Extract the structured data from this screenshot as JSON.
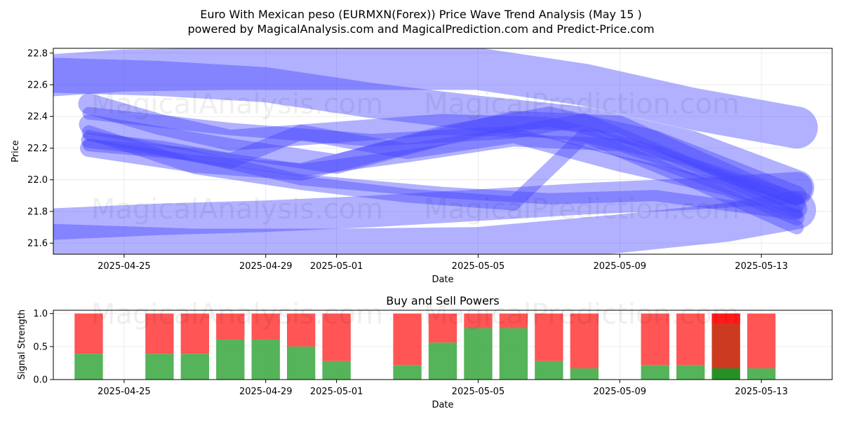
{
  "title_line1": "Euro With Mexican peso (EURMXN(Forex)) Price Wave Trend Analysis (May 15 )",
  "title_line2": "powered by MagicalAnalysis.com and MagicalPrediction.com and Predict-Price.com",
  "watermarks": [
    "MagicalAnalysis.com",
    "MagicalPrediction.com"
  ],
  "colors": {
    "wave": "#4444ff",
    "buy": "#4caf50",
    "sell": "#ff4c4c",
    "sell_dark": "#cc3a1f",
    "buy_dark": "#1a8a1a",
    "sell_bright": "#ff1a1a"
  },
  "chart_data": [
    {
      "type": "line",
      "title": "",
      "xlabel": "Date",
      "ylabel": "Price",
      "ylim": [
        21.53,
        22.83
      ],
      "xlim": [
        "2025-04-23",
        "2025-05-15"
      ],
      "x_ticks": [
        "2025-04-25",
        "2025-04-29",
        "2025-05-01",
        "2025-05-05",
        "2025-05-09",
        "2025-05-13"
      ],
      "y_ticks": [
        21.6,
        21.8,
        22.0,
        22.2,
        22.4,
        22.6,
        22.8
      ],
      "y_tick_labels": [
        "21.6",
        "21.8",
        "22.0",
        "22.2",
        "22.4",
        "22.6",
        "22.8"
      ],
      "grid": true,
      "series": [
        {
          "x": [
            "2025-04-23",
            "2025-04-25",
            "2025-04-28",
            "2025-05-01",
            "2025-05-05",
            "2025-05-08",
            "2025-05-11",
            "2025-05-14"
          ],
          "y": [
            22.66,
            22.69,
            22.7,
            22.7,
            22.7,
            22.6,
            22.45,
            22.33
          ],
          "w": 60
        },
        {
          "x": [
            "2025-04-23",
            "2025-04-26",
            "2025-04-29",
            "2025-05-02",
            "2025-05-05",
            "2025-05-08",
            "2025-05-11",
            "2025-05-14"
          ],
          "y": [
            22.66,
            22.64,
            22.6,
            22.5,
            22.42,
            22.35,
            22.2,
            21.95
          ],
          "w": 50
        },
        {
          "x": [
            "2025-04-23",
            "2025-04-26",
            "2025-04-29",
            "2025-05-02",
            "2025-05-05",
            "2025-05-08",
            "2025-05-11",
            "2025-05-14"
          ],
          "y": [
            21.72,
            21.75,
            21.77,
            21.8,
            21.84,
            21.88,
            21.91,
            21.95
          ],
          "w": 45
        },
        {
          "x": [
            "2025-04-23",
            "2025-04-27",
            "2025-05-01",
            "2025-05-05",
            "2025-05-09",
            "2025-05-12",
            "2025-05-14"
          ],
          "y": [
            21.6,
            21.57,
            21.57,
            21.58,
            21.66,
            21.73,
            21.81
          ],
          "w": 55
        },
        {
          "x": [
            "2025-04-24",
            "2025-04-26",
            "2025-04-28",
            "2025-05-01",
            "2025-05-04",
            "2025-05-07",
            "2025-05-10",
            "2025-05-14"
          ],
          "y": [
            22.48,
            22.35,
            22.25,
            22.3,
            22.35,
            22.33,
            22.15,
            21.82
          ],
          "w": 30
        },
        {
          "x": [
            "2025-04-24",
            "2025-04-26",
            "2025-04-28",
            "2025-04-30",
            "2025-05-03",
            "2025-05-06",
            "2025-05-09",
            "2025-05-12",
            "2025-05-14"
          ],
          "y": [
            22.25,
            22.2,
            22.12,
            22.3,
            22.18,
            22.28,
            22.1,
            21.95,
            21.76
          ],
          "w": 22
        },
        {
          "x": [
            "2025-04-24",
            "2025-04-27",
            "2025-04-30",
            "2025-05-03",
            "2025-05-06",
            "2025-05-09",
            "2025-05-12",
            "2025-05-14"
          ],
          "y": [
            22.22,
            22.16,
            22.06,
            22.15,
            22.25,
            22.22,
            22.0,
            21.8
          ],
          "w": 18
        },
        {
          "x": [
            "2025-04-24",
            "2025-04-27",
            "2025-04-30",
            "2025-05-03",
            "2025-05-06",
            "2025-05-08",
            "2025-05-11",
            "2025-05-14"
          ],
          "y": [
            22.3,
            22.08,
            21.98,
            21.9,
            21.85,
            22.28,
            22.0,
            21.7
          ],
          "w": 20
        },
        {
          "x": [
            "2025-04-24",
            "2025-04-27",
            "2025-04-30",
            "2025-05-03",
            "2025-05-06",
            "2025-05-09",
            "2025-05-12",
            "2025-05-14"
          ],
          "y": [
            22.2,
            22.1,
            22.05,
            22.22,
            22.38,
            22.35,
            22.05,
            21.85
          ],
          "w": 25
        },
        {
          "x": [
            "2025-04-24",
            "2025-04-28",
            "2025-05-01",
            "2025-05-04",
            "2025-05-07",
            "2025-05-10",
            "2025-05-14"
          ],
          "y": [
            22.35,
            22.2,
            22.1,
            22.28,
            22.4,
            22.25,
            21.9
          ],
          "w": 28
        },
        {
          "x": [
            "2025-04-24",
            "2025-04-27",
            "2025-04-30",
            "2025-05-04",
            "2025-05-07",
            "2025-05-10",
            "2025-05-14"
          ],
          "y": [
            22.28,
            22.15,
            22.0,
            21.92,
            21.88,
            21.9,
            21.78
          ],
          "w": 16
        },
        {
          "x": [
            "2025-04-24",
            "2025-04-28",
            "2025-05-02",
            "2025-05-06",
            "2025-05-08",
            "2025-05-11",
            "2025-05-14"
          ],
          "y": [
            22.42,
            22.32,
            22.25,
            22.3,
            22.38,
            22.1,
            21.88
          ],
          "w": 18
        }
      ]
    },
    {
      "type": "bar",
      "title": "Buy and Sell Powers",
      "xlabel": "Date",
      "ylabel": "Signal Strength",
      "ylim": [
        0,
        1.05
      ],
      "xlim": [
        "2025-04-23",
        "2025-05-15"
      ],
      "x_ticks": [
        "2025-04-25",
        "2025-04-29",
        "2025-05-01",
        "2025-05-05",
        "2025-05-09",
        "2025-05-13"
      ],
      "y_ticks": [
        0.0,
        0.5,
        1.0
      ],
      "y_tick_labels": [
        "0.0",
        "0.5",
        "1.0"
      ],
      "grid": true,
      "categories": [
        "2025-04-24",
        "2025-04-26",
        "2025-04-27",
        "2025-04-28",
        "2025-04-29",
        "2025-04-30",
        "2025-05-01",
        "2025-05-03",
        "2025-05-04",
        "2025-05-05",
        "2025-05-06",
        "2025-05-07",
        "2025-05-08",
        "2025-05-10",
        "2025-05-11",
        "2025-05-12",
        "2025-05-13"
      ],
      "series": [
        {
          "name": "Buy",
          "values": [
            0.39,
            0.39,
            0.39,
            0.61,
            0.61,
            0.5,
            0.28,
            0.22,
            0.56,
            0.78,
            0.78,
            0.28,
            0.17,
            0.22,
            0.22,
            0.17,
            0.17
          ]
        },
        {
          "name": "Sell",
          "values": [
            0.61,
            0.61,
            0.61,
            0.39,
            0.39,
            0.5,
            0.72,
            0.78,
            0.44,
            0.22,
            0.22,
            0.72,
            0.83,
            0.78,
            0.78,
            0.83,
            0.83
          ]
        }
      ]
    }
  ]
}
